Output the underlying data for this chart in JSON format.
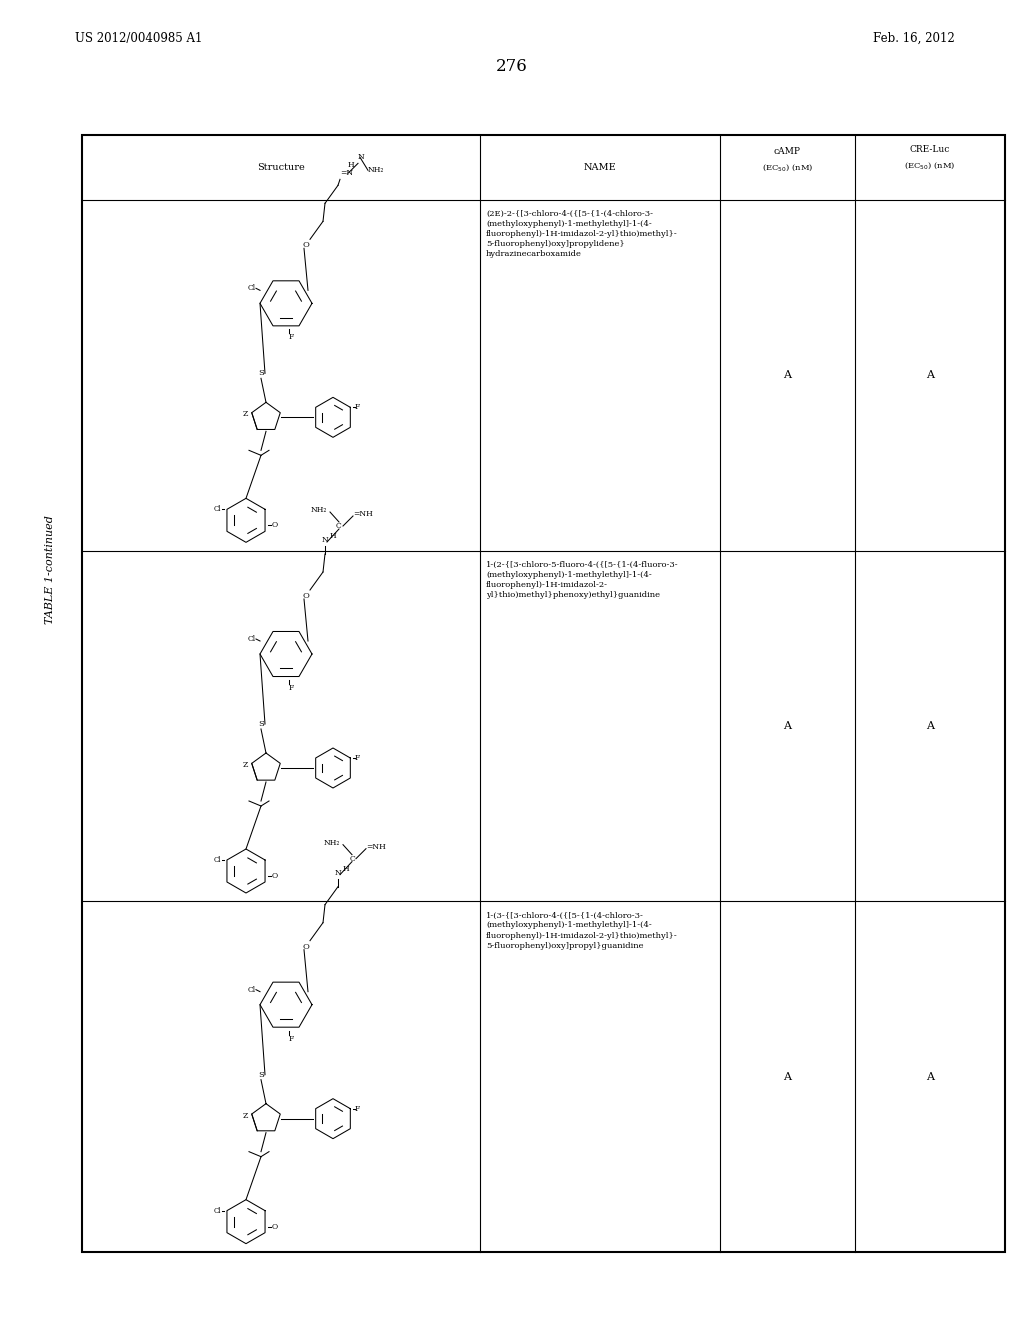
{
  "page_number": "276",
  "patent_number": "US 2012/0040985 A1",
  "patent_date": "Feb. 16, 2012",
  "table_title": "TABLE 1-continued",
  "col_headers": [
    "Structure",
    "NAME",
    "cAMP\n(EC50) (nM)",
    "CRE-Luc\n(EC50) (nM)"
  ],
  "names": [
    "(2E)-2-{[3-chloro-4-({[5-{1-(4-chloro-3-\n(methyloxyphenyl)-1-methylethyl]-1-(4-\nfluorophenyl)-1H-imidazol-2-yl}thio)methyl}-\n5-fluorophenyl)oxy]propylidene}\nhydrazinecarboxamide",
    "1-(2-{[3-chloro-5-fluoro-4-({[5-{1-(4-fluoro-3-\n(methyloxyphenyl)-1-methylethyl]-1-(4-\nfluorophenyl)-1H-imidazol-2-\nyl}thio)methyl}phenoxy)ethyl}guanidine",
    "1-(3-{[3-chloro-4-({[5-{1-(4-chloro-3-\n(methyloxyphenyl)-1-methylethyl]-1-(4-\nfluorophenyl)-1H-imidazol-2-yl}thio)methyl}-\n5-fluorophenyl)oxy]propyl}guanidine"
  ],
  "camp_vals": [
    "A",
    "A",
    "A"
  ],
  "cre_vals": [
    "A",
    "A",
    "A"
  ],
  "background": "#ffffff",
  "black": "#000000"
}
